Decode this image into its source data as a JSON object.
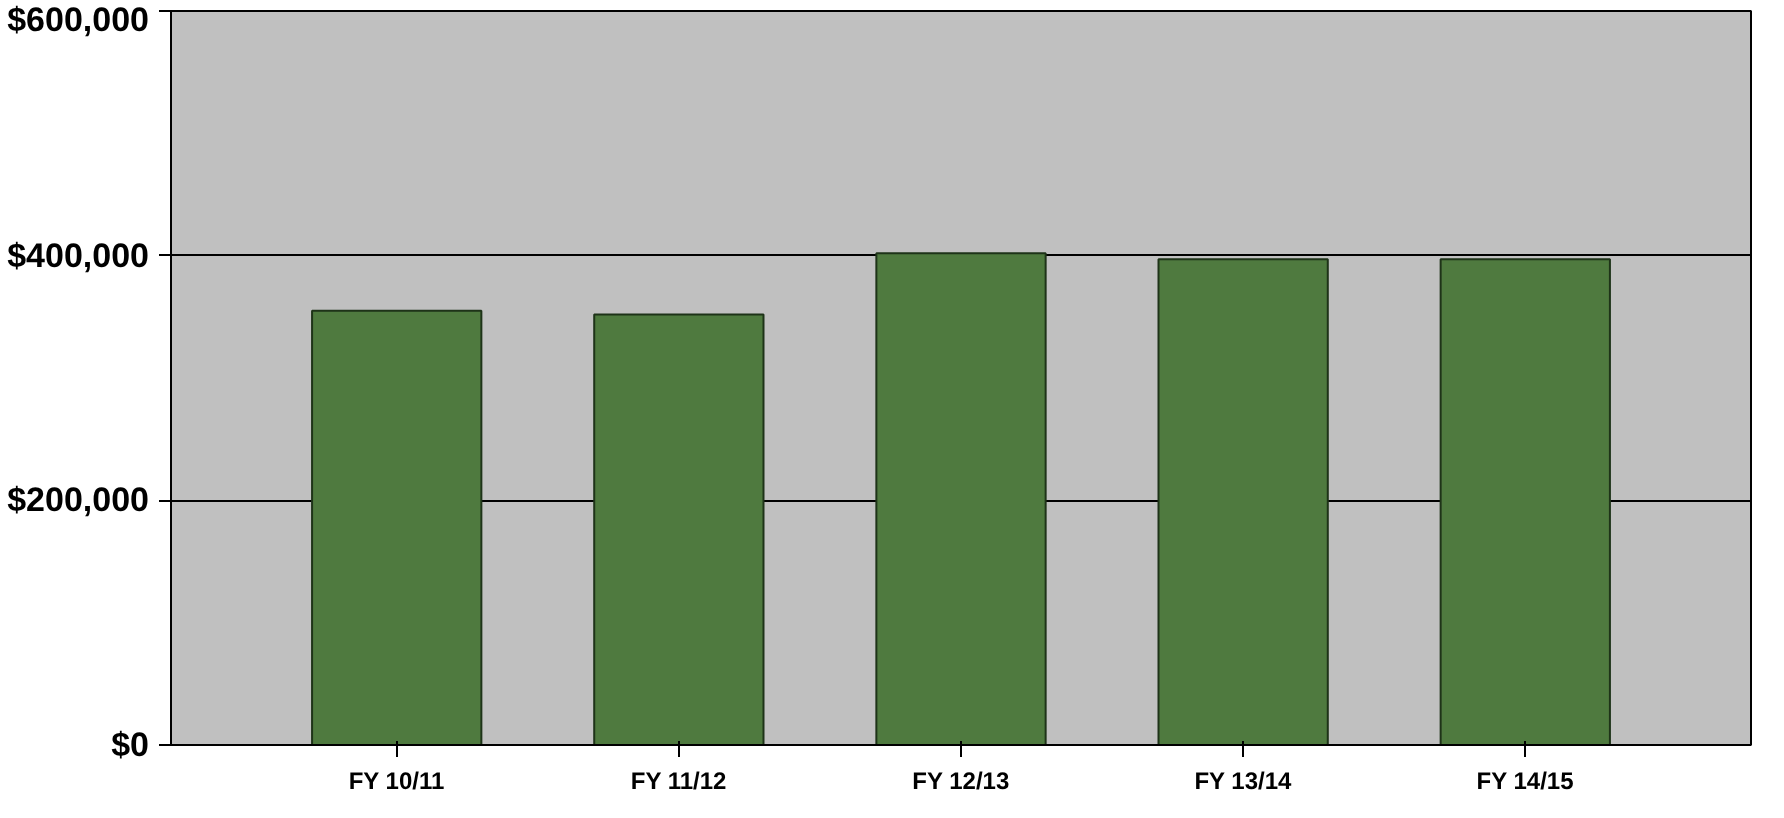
{
  "chart_data": {
    "type": "bar",
    "categories": [
      "FY 10/11",
      "FY 11/12",
      "FY 12/13",
      "FY 13/14",
      "FY 14/15"
    ],
    "values": [
      355000,
      352000,
      402000,
      397000,
      397000
    ],
    "color": "#4f7a3f",
    "ylim": [
      0,
      600000
    ],
    "yticks": [
      {
        "value": 0,
        "label": "$0"
      },
      {
        "value": 200000,
        "label": "$200,000"
      },
      {
        "value": 400000,
        "label": "$400,000"
      },
      {
        "value": 600000,
        "label": "$600,000"
      }
    ],
    "grid": "y"
  }
}
